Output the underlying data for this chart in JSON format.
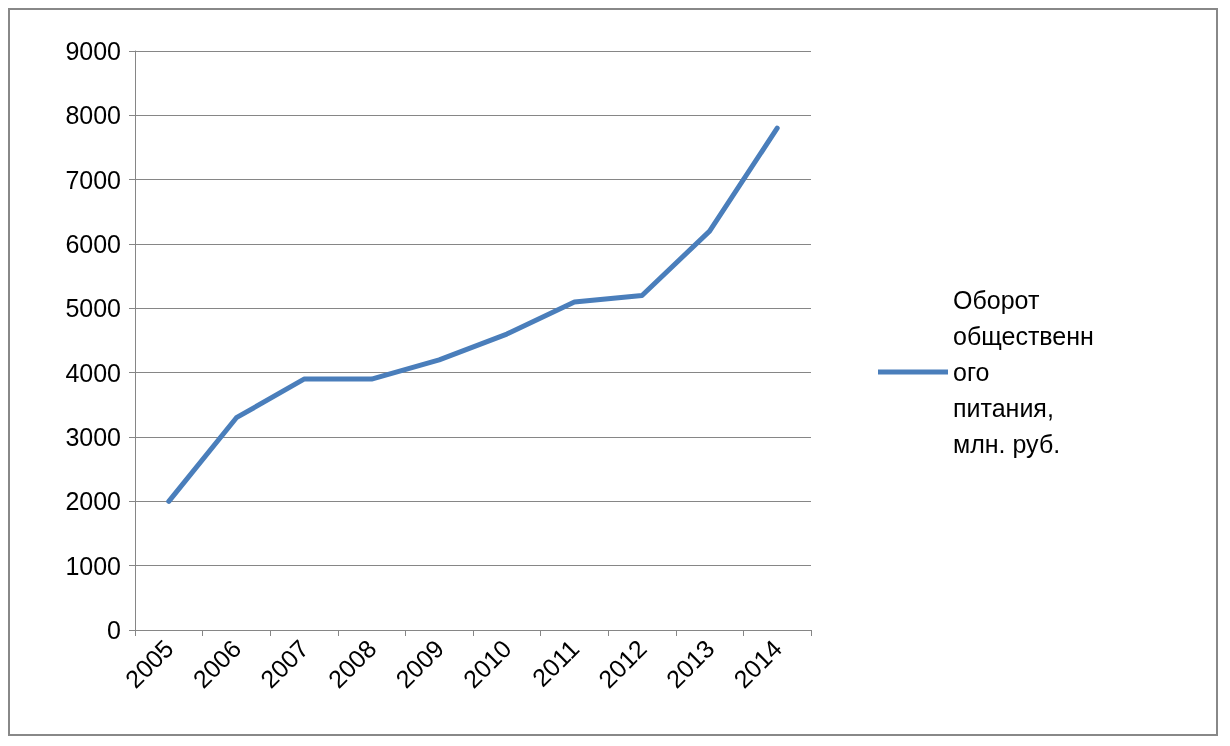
{
  "chart_data": {
    "type": "line",
    "categories": [
      "2005",
      "2006",
      "2007",
      "2008",
      "2009",
      "2010",
      "2011",
      "2012",
      "2013",
      "2014"
    ],
    "series": [
      {
        "name": "Оборот общественного питания, млн. руб.",
        "color": "#4a7ebb",
        "values": [
          2000,
          3300,
          3900,
          3900,
          4200,
          4600,
          5100,
          5200,
          6200,
          7800
        ]
      }
    ],
    "ylim": [
      0,
      9000
    ],
    "yticks": [
      0,
      1000,
      2000,
      3000,
      4000,
      5000,
      6000,
      7000,
      8000,
      9000
    ],
    "grid": "y",
    "legend": "right",
    "marker": "none",
    "line_style": "solid"
  }
}
